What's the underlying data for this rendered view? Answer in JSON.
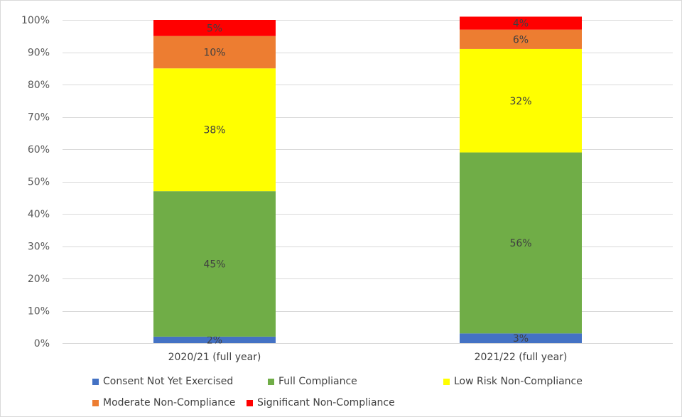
{
  "chart_data": {
    "type": "bar",
    "stacked": true,
    "categories": [
      "2020/21 (full year)",
      "2021/22 (full year)"
    ],
    "series": [
      {
        "name": "Consent Not Yet Exercised",
        "color": "#4472C4",
        "values": [
          2,
          3
        ],
        "labels": [
          "2%",
          "3%"
        ]
      },
      {
        "name": "Full Compliance",
        "color": "#70AD47",
        "values": [
          45,
          56
        ],
        "labels": [
          "45%",
          "56%"
        ]
      },
      {
        "name": "Low Risk Non-Compliance",
        "color": "#FFFF00",
        "values": [
          38,
          32
        ],
        "labels": [
          "38%",
          "32%"
        ]
      },
      {
        "name": "Moderate Non-Compliance",
        "color": "#ED7D31",
        "values": [
          10,
          6
        ],
        "labels": [
          "10%",
          "6%"
        ]
      },
      {
        "name": "Significant Non-Compliance",
        "color": "#FF0000",
        "values": [
          5,
          4
        ],
        "labels": [
          "5%",
          "4%"
        ]
      }
    ],
    "ylim": [
      0,
      100
    ],
    "yticks": [
      0,
      10,
      20,
      30,
      40,
      50,
      60,
      70,
      80,
      90,
      100
    ],
    "ytick_labels": [
      "0%",
      "10%",
      "20%",
      "30%",
      "40%",
      "50%",
      "60%",
      "70%",
      "80%",
      "90%",
      "100%"
    ],
    "grid": true,
    "legend_position": "bottom",
    "title": "",
    "xlabel": "",
    "ylabel": ""
  }
}
